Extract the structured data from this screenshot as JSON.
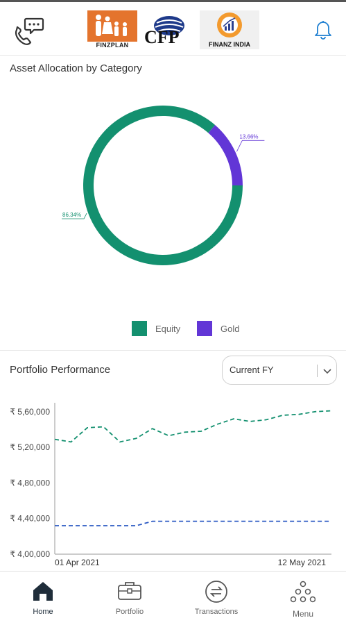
{
  "header": {
    "logos": [
      "FINZPLAN",
      "CFP",
      "FINANZ INDIA"
    ]
  },
  "allocation": {
    "title": "Asset Allocation by Category"
  },
  "performance": {
    "title": "Portfolio Performance",
    "period_selected": "Current FY"
  },
  "nav": {
    "home": "Home",
    "portfolio": "Portfolio",
    "transactions": "Transactions",
    "menu": "Menu"
  },
  "colors": {
    "equity": "#13906f",
    "gold": "#6236d6",
    "benchmark": "#2b59c3",
    "nav_active": "#1f2d3a"
  },
  "chart_data": [
    {
      "type": "pie",
      "title": "Asset Allocation by Category",
      "labels": [
        "Equity",
        "Gold"
      ],
      "values": [
        86.34,
        13.66
      ],
      "data_labels": [
        "86.34%",
        "13.66%"
      ],
      "legend": "bottom"
    },
    {
      "type": "line",
      "title": "Portfolio Performance",
      "x_labels": [
        "01 Apr 2021",
        "12 May 2021"
      ],
      "x": [
        "01 Apr 2021",
        "04 Apr 2021",
        "06 Apr 2021",
        "09 Apr 2021",
        "11 Apr 2021",
        "14 Apr 2021",
        "16 Apr 2021",
        "18 Apr 2021",
        "20 Apr 2021",
        "23 Apr 2021",
        "25 Apr 2021",
        "27 Apr 2021",
        "30 Apr 2021",
        "02 May 2021",
        "05 May 2021",
        "07 May 2021",
        "09 May 2021",
        "12 May 2021"
      ],
      "ylim": [
        400000,
        570000
      ],
      "y_ticks": [
        400000,
        440000,
        480000,
        520000,
        560000
      ],
      "y_tick_labels": [
        "₹ 4,00,000",
        "₹ 4,40,000",
        "₹ 4,80,000",
        "₹ 5,20,000",
        "₹ 5,60,000"
      ],
      "series": [
        {
          "values": [
            529000,
            526000,
            542000,
            543000,
            526000,
            530000,
            541000,
            533000,
            537000,
            538000,
            546000,
            552000,
            549000,
            551000,
            556000,
            557000,
            560000,
            561000
          ]
        },
        {
          "values": [
            432000,
            432000,
            432000,
            432000,
            432000,
            432000,
            437000,
            437000,
            437000,
            437000,
            437000,
            437000,
            437000,
            437000,
            437000,
            437000,
            437000,
            437000
          ]
        }
      ],
      "grid": false
    }
  ]
}
